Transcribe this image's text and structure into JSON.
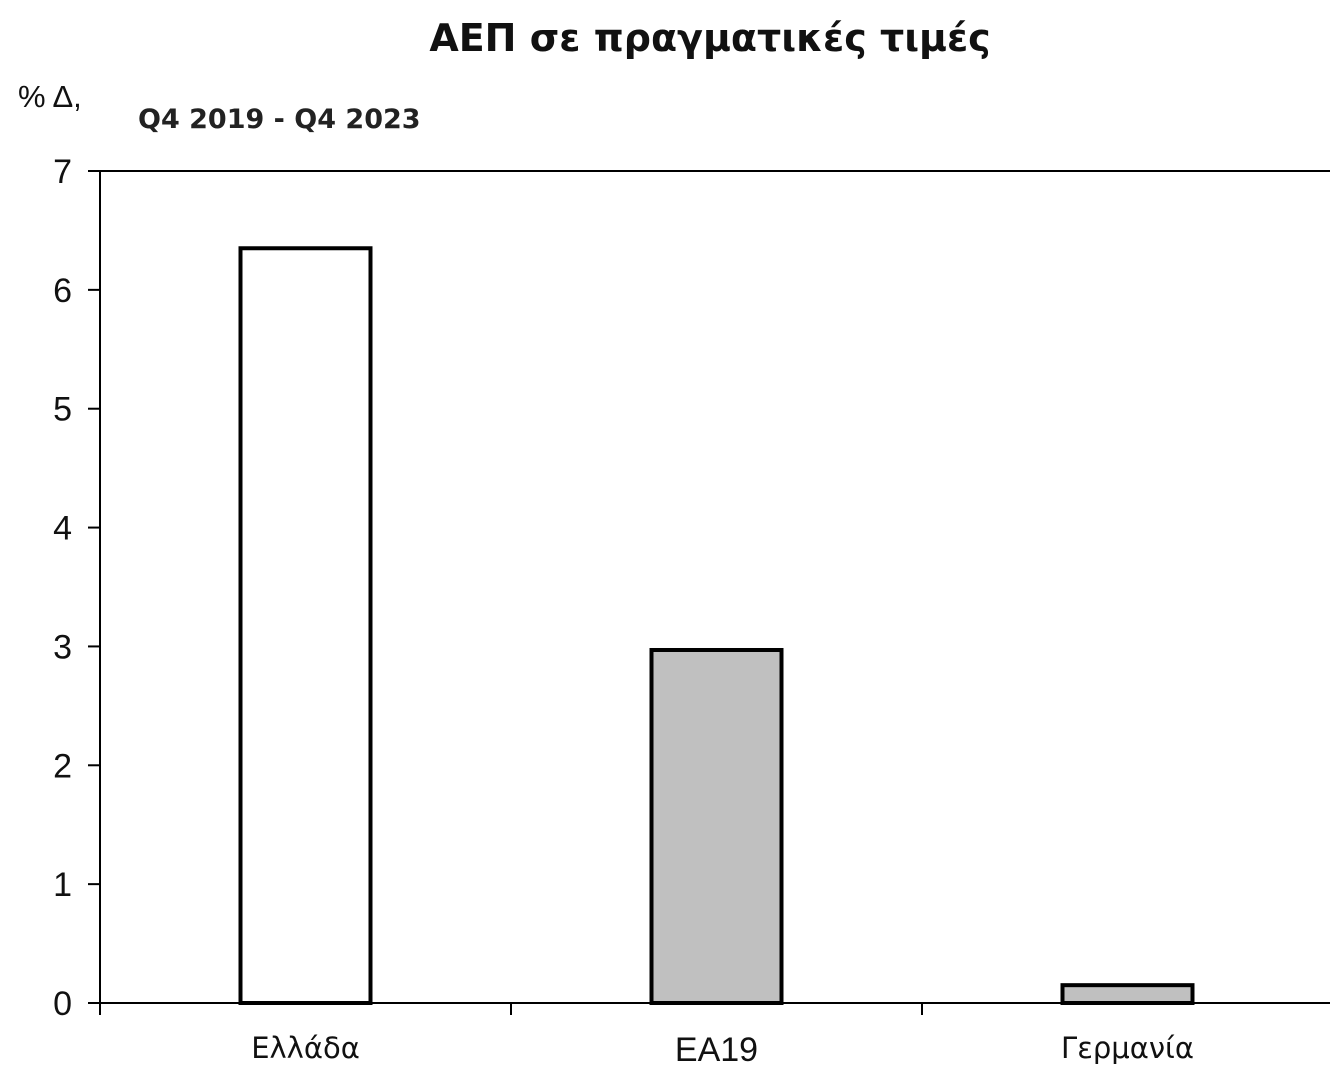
{
  "chart_data": {
    "type": "bar",
    "title": "ΑΕΠ σε πραγματικές τιμές",
    "ylabel": "% Δ,",
    "subtitle": "Q4 2019 - Q4 2023",
    "categories": [
      "Ελλάδα",
      "ΕΑ19",
      "Γερμανία"
    ],
    "values": [
      6.35,
      2.97,
      0.15
    ],
    "bar_colors": [
      "#ffffff",
      "#c0c0c0",
      "#c0c0c0"
    ],
    "bar_edge_color": "#000000",
    "ylim": [
      0,
      7
    ],
    "yticks": [
      "0",
      "1",
      "2",
      "3",
      "4",
      "5",
      "6",
      "7"
    ],
    "grid": false,
    "legend": "none"
  }
}
